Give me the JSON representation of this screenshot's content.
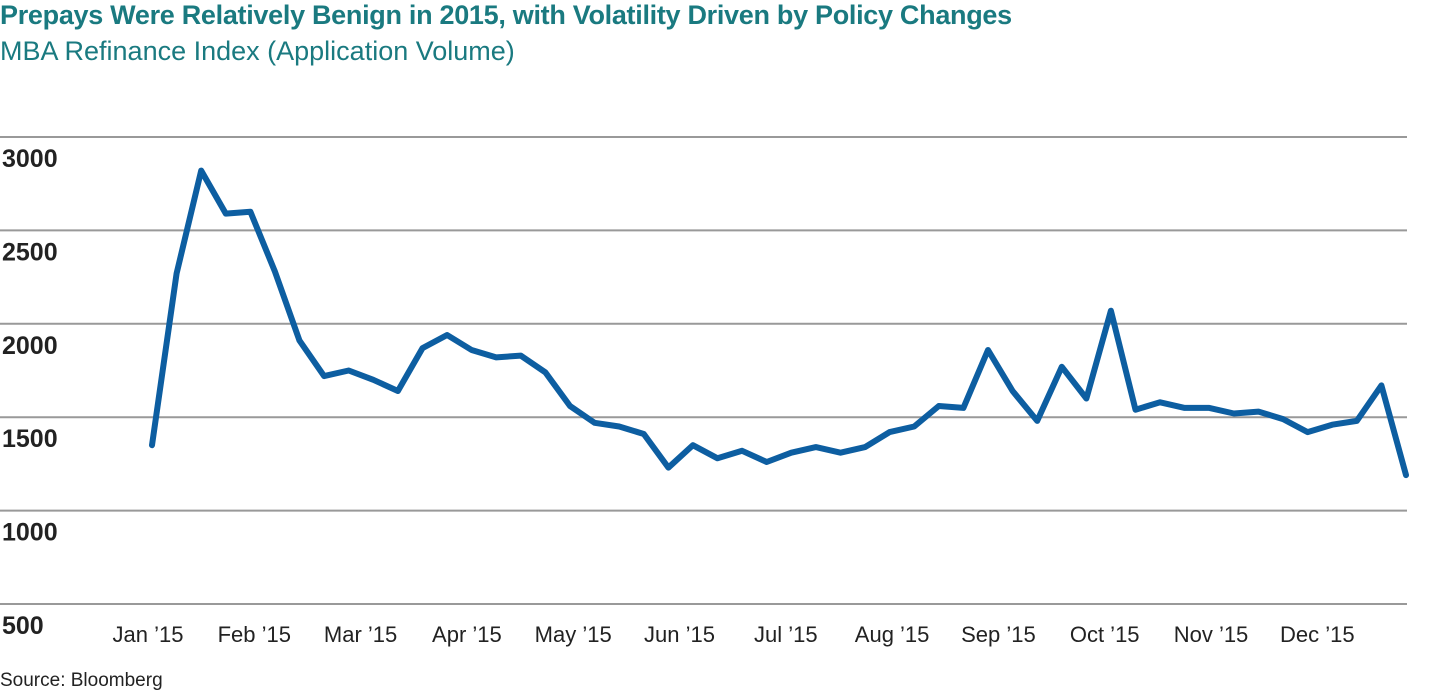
{
  "header": {
    "title": "Prepays Were Relatively Benign in 2015, with Volatility Driven by Policy Changes",
    "subtitle": "MBA Refinance Index (Application Volume)"
  },
  "footer": {
    "source": "Source: Bloomberg"
  },
  "colors": {
    "line": "#0d5ea1",
    "title": "#1a7a80",
    "grid": "#999999"
  },
  "chart_data": {
    "type": "line",
    "title": "Prepays Were Relatively Benign in 2015, with Volatility Driven by Policy Changes",
    "subtitle": "MBA Refinance Index (Application Volume)",
    "xlabel": "",
    "ylabel": "",
    "ylim": [
      500,
      3000
    ],
    "yticks": [
      3000,
      2500,
      2000,
      1500,
      1000,
      500
    ],
    "x_tick_labels": [
      "Jan ’15",
      "Feb ’15",
      "Mar ’15",
      "Apr ’15",
      "May ’15",
      "Jun ’15",
      "Jul ’15",
      "Aug ’15",
      "Sep ’15",
      "Oct ’15",
      "Nov ’15",
      "Dec ’15"
    ],
    "grid": "horizontal",
    "legend": "none",
    "frequency": "weekly",
    "series": [
      {
        "values": [
          1350,
          2270,
          2820,
          2590,
          2600,
          2280,
          1910,
          1720,
          1750,
          1700,
          1640,
          1870,
          1940,
          1860,
          1820,
          1830,
          1740,
          1560,
          1470,
          1450,
          1410,
          1230,
          1350,
          1280,
          1320,
          1260,
          1310,
          1340,
          1310,
          1340,
          1420,
          1450,
          1560,
          1550,
          1860,
          1640,
          1480,
          1770,
          1600,
          2070,
          1540,
          1580,
          1550,
          1550,
          1520,
          1530,
          1490,
          1420,
          1460,
          1480,
          1670,
          1190
        ]
      }
    ]
  }
}
